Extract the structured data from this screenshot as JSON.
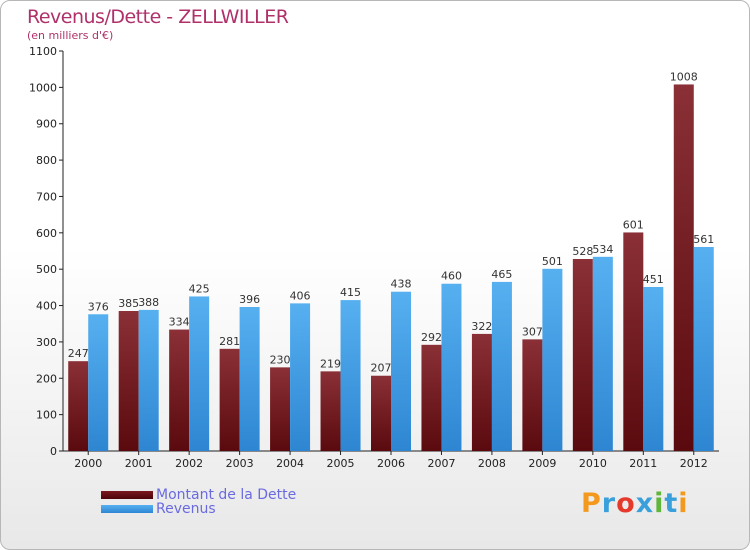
{
  "title": "Revenus/Dette - ZELLWILLER",
  "subtitle": "(en milliers d'€)",
  "logo": {
    "text": "Proxiti",
    "colors": [
      "#f39a1e",
      "#3aa0dc",
      "#e53a2b",
      "#3aa0dc",
      "#5fb63a",
      "#3aa0dc",
      "#f39a1e"
    ]
  },
  "colors": {
    "dette": "#6e1418",
    "revenus": "#3b9ae6",
    "title": "#b0306a",
    "legend_text": "#6a6ae0"
  },
  "chart_data": {
    "type": "bar",
    "title": "Revenus/Dette - ZELLWILLER",
    "subtitle": "(en milliers d'€)",
    "categories": [
      "2000",
      "2001",
      "2002",
      "2003",
      "2004",
      "2005",
      "2006",
      "2007",
      "2008",
      "2009",
      "2010",
      "2011",
      "2012"
    ],
    "series": [
      {
        "name": "Montant de la Dette",
        "values": [
          247,
          385,
          334,
          281,
          230,
          219,
          207,
          292,
          322,
          307,
          528,
          601,
          1008
        ]
      },
      {
        "name": "Revenus",
        "values": [
          376,
          388,
          425,
          396,
          406,
          415,
          438,
          460,
          465,
          501,
          534,
          451,
          561
        ]
      }
    ],
    "ylim": [
      0,
      1100
    ],
    "yticks": [
      0,
      100,
      200,
      300,
      400,
      500,
      600,
      700,
      800,
      900,
      1000,
      1100
    ],
    "grid": false,
    "legend_position": "bottom-left"
  }
}
